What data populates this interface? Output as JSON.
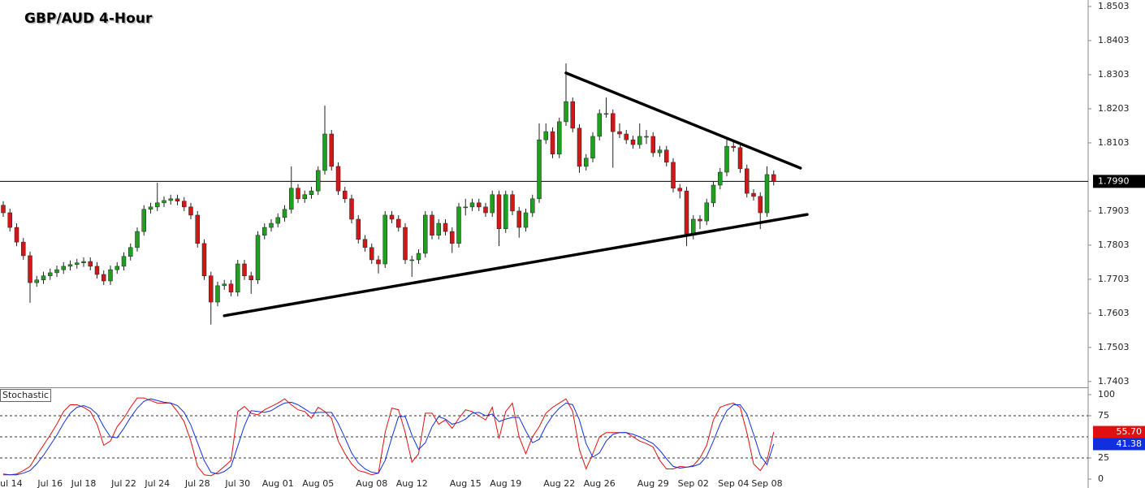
{
  "chart_data": [
    {
      "type": "candlestick",
      "title": "GBP/AUD 4-Hour",
      "up_color": "#1f9e1f",
      "down_color": "#d01818",
      "wick_color": "#222222",
      "ylim": [
        1.7386,
        1.8522
      ],
      "yticks": [
        1.8503,
        1.8403,
        1.8303,
        1.8203,
        1.8103,
        1.7903,
        1.7803,
        1.7703,
        1.7603,
        1.7503,
        1.7403
      ],
      "last_price": {
        "value": 1.799,
        "label": "1.7990"
      },
      "xticks": [
        {
          "value": 1,
          "label": "Jul 14"
        },
        {
          "value": 7,
          "label": "Jul 16"
        },
        {
          "value": 12,
          "label": "Jul 18"
        },
        {
          "value": 18,
          "label": "Jul 22"
        },
        {
          "value": 23,
          "label": "Jul 24"
        },
        {
          "value": 29,
          "label": "Jul 28"
        },
        {
          "value": 35,
          "label": "Jul 30"
        },
        {
          "value": 41,
          "label": "Aug 01"
        },
        {
          "value": 47,
          "label": "Aug 05"
        },
        {
          "value": 55,
          "label": "Aug 08"
        },
        {
          "value": 61,
          "label": "Aug 12"
        },
        {
          "value": 69,
          "label": "Aug 15"
        },
        {
          "value": 75,
          "label": "Aug 19"
        },
        {
          "value": 83,
          "label": "Aug 22"
        },
        {
          "value": 89,
          "label": "Aug 26"
        },
        {
          "value": 97,
          "label": "Aug 29"
        },
        {
          "value": 103,
          "label": "Sep 02"
        },
        {
          "value": 109,
          "label": "Sep 04"
        },
        {
          "value": 114,
          "label": "Sep 08"
        }
      ],
      "trendlines": [
        {
          "start": [
            84,
            1.8308
          ],
          "end": [
            119,
            1.8029
          ]
        },
        {
          "start": [
            33,
            1.7596
          ],
          "end": [
            120,
            1.7893
          ]
        }
      ],
      "ohlc": [
        [
          1.792,
          1.7932,
          1.7886,
          1.7898
        ],
        [
          1.7898,
          1.791,
          1.7843,
          1.7855
        ],
        [
          1.7855,
          1.7867,
          1.78,
          1.7812
        ],
        [
          1.7812,
          1.7824,
          1.776,
          1.7772
        ],
        [
          1.7772,
          1.7784,
          1.7634,
          1.7693
        ],
        [
          1.7693,
          1.7713,
          1.7681,
          1.7701
        ],
        [
          1.7701,
          1.7725,
          1.7689,
          1.7713
        ],
        [
          1.7713,
          1.7734,
          1.7701,
          1.7722
        ],
        [
          1.7722,
          1.7743,
          1.771,
          1.7731
        ],
        [
          1.7731,
          1.7753,
          1.7719,
          1.7741
        ],
        [
          1.7741,
          1.7758,
          1.7729,
          1.7746
        ],
        [
          1.7746,
          1.7763,
          1.7734,
          1.7751
        ],
        [
          1.7751,
          1.7767,
          1.7739,
          1.7755
        ],
        [
          1.7755,
          1.7767,
          1.7729,
          1.7741
        ],
        [
          1.7741,
          1.7753,
          1.7705,
          1.7717
        ],
        [
          1.7717,
          1.7729,
          1.7686,
          1.7698
        ],
        [
          1.7698,
          1.7743,
          1.7686,
          1.7731
        ],
        [
          1.7731,
          1.7753,
          1.7719,
          1.7741
        ],
        [
          1.7741,
          1.7782,
          1.7729,
          1.777
        ],
        [
          1.777,
          1.7808,
          1.7758,
          1.7796
        ],
        [
          1.7796,
          1.7855,
          1.7784,
          1.7843
        ],
        [
          1.7843,
          1.792,
          1.7831,
          1.7908
        ],
        [
          1.7908,
          1.7927,
          1.7896,
          1.7915
        ],
        [
          1.7915,
          1.7986,
          1.7903,
          1.7927
        ],
        [
          1.7927,
          1.7946,
          1.7915,
          1.7934
        ],
        [
          1.7934,
          1.7951,
          1.7922,
          1.7939
        ],
        [
          1.7939,
          1.7951,
          1.792,
          1.7932
        ],
        [
          1.7932,
          1.7944,
          1.7903,
          1.7915
        ],
        [
          1.7915,
          1.7927,
          1.7879,
          1.7891
        ],
        [
          1.7891,
          1.7903,
          1.7796,
          1.7808
        ],
        [
          1.7808,
          1.782,
          1.7701,
          1.7713
        ],
        [
          1.7713,
          1.7725,
          1.757,
          1.7636
        ],
        [
          1.7636,
          1.7696,
          1.7624,
          1.7684
        ],
        [
          1.7684,
          1.7701,
          1.7672,
          1.7689
        ],
        [
          1.7689,
          1.7701,
          1.7653,
          1.7665
        ],
        [
          1.7665,
          1.776,
          1.7653,
          1.7748
        ],
        [
          1.7748,
          1.776,
          1.7701,
          1.7713
        ],
        [
          1.7713,
          1.7725,
          1.766,
          1.7701
        ],
        [
          1.7701,
          1.7844,
          1.7689,
          1.7832
        ],
        [
          1.7832,
          1.7867,
          1.782,
          1.7855
        ],
        [
          1.7855,
          1.7879,
          1.7843,
          1.7867
        ],
        [
          1.7867,
          1.7896,
          1.7855,
          1.7884
        ],
        [
          1.7884,
          1.792,
          1.7872,
          1.7908
        ],
        [
          1.7908,
          1.8034,
          1.7896,
          1.797
        ],
        [
          1.797,
          1.7982,
          1.7927,
          1.7939
        ],
        [
          1.7939,
          1.7963,
          1.7927,
          1.7951
        ],
        [
          1.7951,
          1.7974,
          1.7939,
          1.7962
        ],
        [
          1.7962,
          1.8034,
          1.795,
          1.8022
        ],
        [
          1.8022,
          1.8212,
          1.801,
          1.8129
        ],
        [
          1.8129,
          1.8141,
          1.8022,
          1.8034
        ],
        [
          1.8034,
          1.8046,
          1.795,
          1.7962
        ],
        [
          1.7962,
          1.7974,
          1.7927,
          1.7939
        ],
        [
          1.7939,
          1.7951,
          1.7867,
          1.7879
        ],
        [
          1.7879,
          1.7891,
          1.7808,
          1.782
        ],
        [
          1.782,
          1.7832,
          1.7784,
          1.7796
        ],
        [
          1.7796,
          1.7808,
          1.7748,
          1.776
        ],
        [
          1.776,
          1.7772,
          1.772,
          1.7748
        ],
        [
          1.7748,
          1.7903,
          1.7736,
          1.7891
        ],
        [
          1.7891,
          1.7903,
          1.7867,
          1.7879
        ],
        [
          1.7879,
          1.7891,
          1.7843,
          1.7855
        ],
        [
          1.7855,
          1.7867,
          1.7748,
          1.776
        ],
        [
          1.776,
          1.7772,
          1.771,
          1.776
        ],
        [
          1.776,
          1.7791,
          1.7748,
          1.7779
        ],
        [
          1.7779,
          1.7903,
          1.7767,
          1.7891
        ],
        [
          1.7891,
          1.7903,
          1.782,
          1.7832
        ],
        [
          1.7832,
          1.7879,
          1.782,
          1.7867
        ],
        [
          1.7867,
          1.7879,
          1.7831,
          1.7843
        ],
        [
          1.7843,
          1.7855,
          1.778,
          1.7808
        ],
        [
          1.7808,
          1.7927,
          1.7796,
          1.7915
        ],
        [
          1.7915,
          1.7939,
          1.789,
          1.7915
        ],
        [
          1.7915,
          1.7939,
          1.7903,
          1.7927
        ],
        [
          1.7927,
          1.7939,
          1.7903,
          1.7915
        ],
        [
          1.7915,
          1.7927,
          1.7886,
          1.7898
        ],
        [
          1.7898,
          1.7963,
          1.7886,
          1.7951
        ],
        [
          1.7951,
          1.7963,
          1.78,
          1.7851
        ],
        [
          1.7851,
          1.7963,
          1.7839,
          1.7951
        ],
        [
          1.7951,
          1.7963,
          1.7891,
          1.7903
        ],
        [
          1.7903,
          1.7915,
          1.7825,
          1.7855
        ],
        [
          1.7855,
          1.791,
          1.7843,
          1.7898
        ],
        [
          1.7898,
          1.7951,
          1.7886,
          1.7939
        ],
        [
          1.7939,
          1.816,
          1.7927,
          1.8112
        ],
        [
          1.8112,
          1.816,
          1.81,
          1.8136
        ],
        [
          1.8136,
          1.8148,
          1.8058,
          1.807
        ],
        [
          1.807,
          1.8177,
          1.8058,
          1.8165
        ],
        [
          1.8165,
          1.8336,
          1.8153,
          1.8224
        ],
        [
          1.8224,
          1.8236,
          1.8134,
          1.8146
        ],
        [
          1.8146,
          1.8158,
          1.8015,
          1.8034
        ],
        [
          1.8034,
          1.807,
          1.8022,
          1.8058
        ],
        [
          1.8058,
          1.8134,
          1.8046,
          1.8122
        ],
        [
          1.8122,
          1.8201,
          1.811,
          1.8189
        ],
        [
          1.8189,
          1.8236,
          1.8177,
          1.8189
        ],
        [
          1.8189,
          1.8201,
          1.803,
          1.8136
        ],
        [
          1.8136,
          1.816,
          1.8117,
          1.8129
        ],
        [
          1.8129,
          1.8141,
          1.81,
          1.8112
        ],
        [
          1.8112,
          1.8124,
          1.8086,
          1.8098
        ],
        [
          1.8098,
          1.816,
          1.8086,
          1.8122
        ],
        [
          1.8122,
          1.8141,
          1.81,
          1.8122
        ],
        [
          1.8122,
          1.8134,
          1.8062,
          1.8074
        ],
        [
          1.8074,
          1.8094,
          1.8062,
          1.8082
        ],
        [
          1.8082,
          1.8094,
          1.8034,
          1.8046
        ],
        [
          1.8046,
          1.8058,
          1.7958,
          1.797
        ],
        [
          1.797,
          1.7982,
          1.794,
          1.7962
        ],
        [
          1.7962,
          1.7974,
          1.78,
          1.7836
        ],
        [
          1.7836,
          1.7891,
          1.782,
          1.7879
        ],
        [
          1.7879,
          1.7891,
          1.785,
          1.7874
        ],
        [
          1.7874,
          1.7939,
          1.7862,
          1.7927
        ],
        [
          1.7927,
          1.7991,
          1.7915,
          1.7979
        ],
        [
          1.7979,
          1.8029,
          1.7967,
          1.8017
        ],
        [
          1.8017,
          1.8117,
          1.8005,
          1.8093
        ],
        [
          1.8093,
          1.811,
          1.8077,
          1.8089
        ],
        [
          1.8089,
          1.8101,
          1.8015,
          1.8027
        ],
        [
          1.8027,
          1.8039,
          1.7943,
          1.7955
        ],
        [
          1.7955,
          1.7967,
          1.7934,
          1.7946
        ],
        [
          1.7946,
          1.7958,
          1.785,
          1.7898
        ],
        [
          1.7898,
          1.8034,
          1.7886,
          1.801
        ],
        [
          1.801,
          1.8022,
          1.7978,
          1.799
        ]
      ]
    },
    {
      "type": "line",
      "title": "Stochastic",
      "ylim": [
        -10.6,
        107.7
      ],
      "yticks": [
        0,
        25,
        75,
        100
      ],
      "levels": [
        25,
        50,
        75
      ],
      "series": [
        {
          "color": "#e01010",
          "last_label": {
            "value": 55.7,
            "label": "55.70"
          },
          "values": [
            5,
            5,
            6,
            10,
            15,
            28,
            40,
            52,
            65,
            80,
            88,
            88,
            85,
            80,
            65,
            40,
            45,
            62,
            72,
            85,
            96,
            96,
            93,
            90,
            90,
            90,
            80,
            68,
            45,
            15,
            5,
            4,
            8,
            15,
            22,
            80,
            86,
            78,
            76,
            82,
            86,
            90,
            95,
            88,
            82,
            80,
            72,
            85,
            80,
            72,
            45,
            30,
            18,
            10,
            8,
            5,
            7,
            55,
            84,
            82,
            55,
            20,
            30,
            78,
            78,
            65,
            70,
            60,
            72,
            82,
            80,
            75,
            70,
            85,
            48,
            80,
            90,
            50,
            30,
            50,
            62,
            78,
            85,
            90,
            95,
            80,
            35,
            12,
            30,
            50,
            55,
            55,
            55,
            55,
            50,
            45,
            42,
            38,
            22,
            12,
            12,
            15,
            14,
            16,
            25,
            40,
            70,
            85,
            88,
            90,
            85,
            55,
            18,
            10,
            22,
            55.7
          ]
        },
        {
          "color": "#1030e0",
          "last_label": 41.38,
          "values": [
            6,
            5,
            5,
            7,
            10,
            18,
            28,
            40,
            52,
            66,
            78,
            85,
            87,
            84,
            77,
            62,
            50,
            49,
            60,
            73,
            84,
            92,
            95,
            93,
            91,
            90,
            87,
            79,
            64,
            43,
            22,
            8,
            6,
            9,
            15,
            39,
            63,
            81,
            80,
            79,
            81,
            86,
            90,
            91,
            88,
            83,
            78,
            79,
            79,
            79,
            66,
            49,
            31,
            19,
            12,
            8,
            7,
            22,
            49,
            74,
            74,
            52,
            35,
            43,
            62,
            74,
            71,
            65,
            67,
            71,
            78,
            79,
            75,
            77,
            68,
            71,
            73,
            73,
            57,
            43,
            47,
            63,
            75,
            84,
            90,
            88,
            70,
            42,
            26,
            31,
            45,
            53,
            55,
            55,
            53,
            50,
            46,
            42,
            34,
            24,
            15,
            13,
            14,
            15,
            18,
            27,
            45,
            65,
            81,
            88,
            88,
            77,
            53,
            28,
            17,
            41.38
          ]
        }
      ]
    }
  ]
}
